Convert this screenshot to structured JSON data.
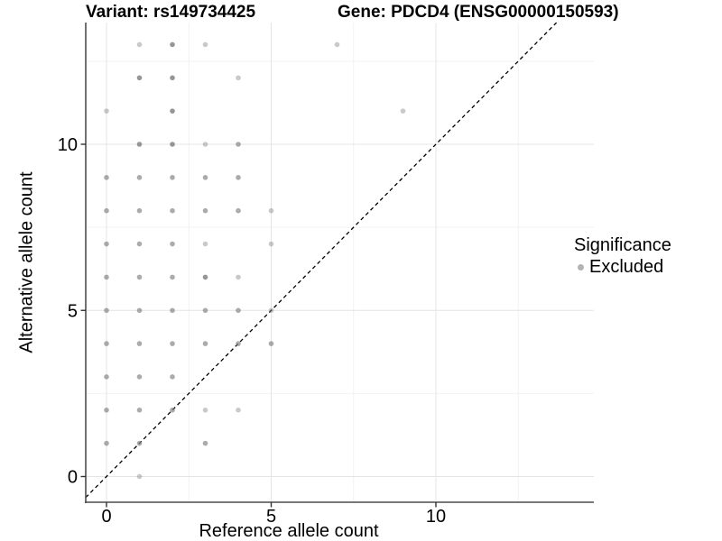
{
  "header": {
    "variant_title": "Variant: rs149734425",
    "gene_title": "Gene: PDCD4 (ENSG00000150593)"
  },
  "legend": {
    "title": "Significance",
    "items": [
      {
        "label": "Excluded",
        "color": "#b3b3b3"
      }
    ]
  },
  "colors": {
    "point_base": "#7f7f7f",
    "axis_line": "#4d4d4d",
    "tick_mark": "#333333",
    "grid_major": "#e4e4e4",
    "grid_minor": "#f2f2f2",
    "identity_line": "#000000"
  },
  "chart_data": {
    "type": "scatter",
    "title": "",
    "xlabel": "Reference allele count",
    "ylabel": "Alternative allele count",
    "x_ticks": [
      0,
      5,
      10
    ],
    "y_ticks": [
      0,
      5,
      10
    ],
    "x_minor_ticks": [
      2.5,
      7.5,
      12.5
    ],
    "y_minor_ticks": [
      2.5,
      7.5,
      12.5
    ],
    "xlim": [
      -0.63,
      14.8
    ],
    "ylim": [
      -0.77,
      13.66
    ],
    "grid": true,
    "legend_position": "right",
    "identity_line": {
      "style": "dashed",
      "equation": "y = x"
    },
    "series": [
      {
        "name": "Excluded",
        "note": "points as [x, y, overplot_weight] where weight 1=light 2=medium 3=dark",
        "points": [
          [
            1,
            13,
            1
          ],
          [
            2,
            13,
            3
          ],
          [
            3,
            13,
            1
          ],
          [
            7,
            13,
            1
          ],
          [
            1,
            12,
            3
          ],
          [
            2,
            12,
            3
          ],
          [
            4,
            12,
            1
          ],
          [
            0,
            11,
            1
          ],
          [
            2,
            11,
            3
          ],
          [
            9,
            11,
            1
          ],
          [
            1,
            10,
            3
          ],
          [
            2,
            10,
            3
          ],
          [
            3,
            10,
            1
          ],
          [
            4,
            10,
            2
          ],
          [
            0,
            9,
            2
          ],
          [
            1,
            9,
            2
          ],
          [
            2,
            9,
            2
          ],
          [
            3,
            9,
            2
          ],
          [
            4,
            9,
            2
          ],
          [
            0,
            8,
            2
          ],
          [
            1,
            8,
            2
          ],
          [
            2,
            8,
            2
          ],
          [
            3,
            8,
            2
          ],
          [
            4,
            8,
            2
          ],
          [
            5,
            8,
            1
          ],
          [
            0,
            7,
            2
          ],
          [
            1,
            7,
            2
          ],
          [
            2,
            7,
            2
          ],
          [
            3,
            7,
            1
          ],
          [
            5,
            7,
            1
          ],
          [
            0,
            6,
            2
          ],
          [
            1,
            6,
            2
          ],
          [
            2,
            6,
            2
          ],
          [
            3,
            6,
            3
          ],
          [
            4,
            6,
            1
          ],
          [
            0,
            5,
            2
          ],
          [
            1,
            5,
            2
          ],
          [
            2,
            5,
            2
          ],
          [
            3,
            5,
            2
          ],
          [
            4,
            5,
            2
          ],
          [
            5,
            5,
            1
          ],
          [
            0,
            4,
            2
          ],
          [
            1,
            4,
            2
          ],
          [
            2,
            4,
            2
          ],
          [
            3,
            4,
            2
          ],
          [
            4,
            4,
            2
          ],
          [
            5,
            4,
            2
          ],
          [
            0,
            3,
            2
          ],
          [
            1,
            3,
            2
          ],
          [
            2,
            3,
            2
          ],
          [
            0,
            2,
            2
          ],
          [
            1,
            2,
            2
          ],
          [
            2,
            2,
            2
          ],
          [
            3,
            2,
            1
          ],
          [
            4,
            2,
            1
          ],
          [
            0,
            1,
            2
          ],
          [
            1,
            1,
            2
          ],
          [
            3,
            1,
            2
          ],
          [
            1,
            0,
            1
          ]
        ]
      }
    ]
  }
}
